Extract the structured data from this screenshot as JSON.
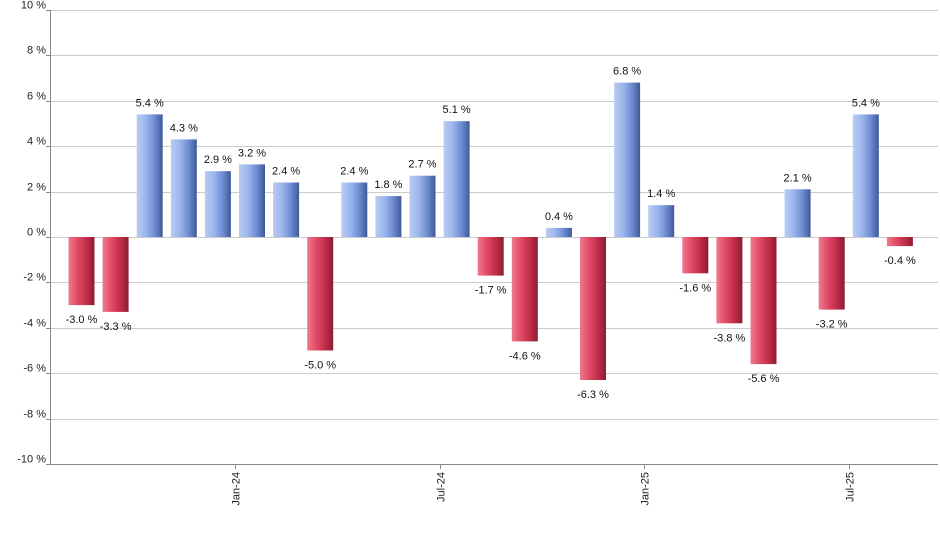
{
  "chart_data": {
    "type": "bar",
    "title": "",
    "xlabel": "",
    "ylabel": "",
    "ylim": [
      -10,
      10
    ],
    "yticks": [
      -10,
      -8,
      -6,
      -4,
      -2,
      0,
      2,
      4,
      6,
      8,
      10
    ],
    "ytick_suffix": " %",
    "grid": true,
    "legend": "none",
    "x_tick_labels": [
      {
        "index": 4,
        "label": "Jan-24"
      },
      {
        "index": 10,
        "label": "Jul-24"
      },
      {
        "index": 16,
        "label": "Jan-25"
      },
      {
        "index": 22,
        "label": "Jul-25"
      }
    ],
    "values": [
      -3.0,
      -3.3,
      5.4,
      4.3,
      2.9,
      3.2,
      2.4,
      -5.0,
      2.4,
      1.8,
      2.7,
      5.1,
      -1.7,
      -4.6,
      0.4,
      -6.3,
      6.8,
      1.4,
      -1.6,
      -3.8,
      -5.6,
      2.1,
      -3.2,
      5.4,
      -0.4
    ],
    "value_labels": [
      "-3.0 %",
      "-3.3 %",
      "5.4 %",
      "4.3 %",
      "2.9 %",
      "3.2 %",
      "2.4 %",
      "-5.0 %",
      "2.4 %",
      "1.8 %",
      "2.7 %",
      "5.1 %",
      "-1.7 %",
      "-4.6 %",
      "0.4 %",
      "-6.3 %",
      "6.8 %",
      "1.4 %",
      "-1.6 %",
      "-3.8 %",
      "-5.6 %",
      "2.1 %",
      "-3.2 %",
      "5.4 %",
      "-0.4 %"
    ],
    "colors": {
      "positive_light": "#b9ccf2",
      "positive_mid": "#7d9ee0",
      "positive_dark": "#3e5a95",
      "negative_light": "#f07a8e",
      "negative_mid": "#cc3350",
      "negative_dark": "#8a1c33",
      "grid": "#cccccc",
      "axis": "#888888"
    }
  }
}
